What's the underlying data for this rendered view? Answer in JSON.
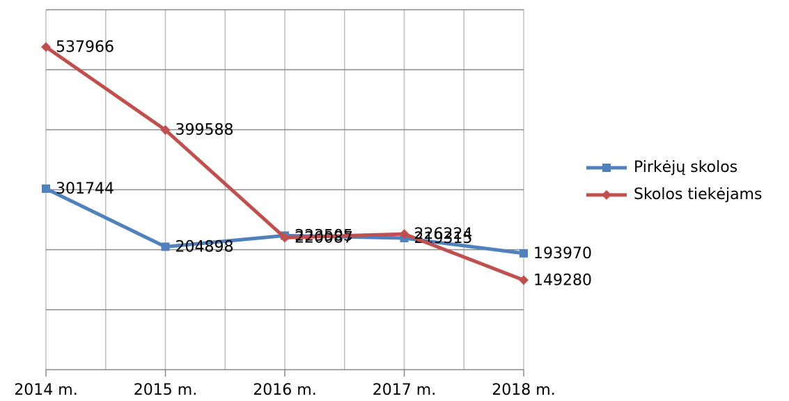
{
  "chart_data": {
    "type": "line",
    "categories": [
      "2014 m.",
      "2015 m.",
      "2016 m.",
      "2017 m.",
      "2018 m."
    ],
    "series": [
      {
        "name": "Pirkėjų skolos",
        "color": "#4f81bd",
        "marker": "square",
        "values": [
          301744,
          204898,
          223505,
          219315,
          193970
        ]
      },
      {
        "name": "Skolos tiekėjams",
        "color": "#c0504d",
        "marker": "diamond",
        "values": [
          537966,
          399588,
          220087,
          226224,
          149280
        ]
      }
    ],
    "ylim": [
      0,
      600000
    ],
    "yticks": [
      0,
      100000,
      200000,
      300000,
      400000,
      500000,
      600000
    ],
    "ytick_labels": false,
    "grid": true,
    "data_labels": true,
    "legend": "right"
  }
}
